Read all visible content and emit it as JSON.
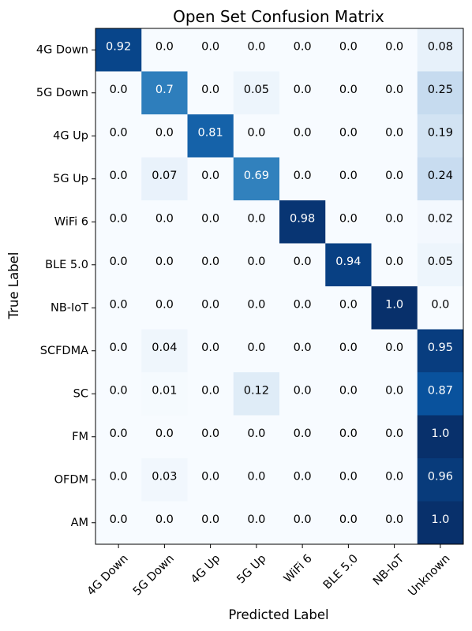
{
  "chart_data": {
    "type": "heatmap",
    "title": "Open Set Confusion Matrix",
    "xlabel": "Predicted Label",
    "ylabel": "True Label",
    "x_categories": [
      "4G Down",
      "5G Down",
      "4G Up",
      "5G Up",
      "WiFi 6",
      "BLE 5.0",
      "NB-IoT",
      "Unknown"
    ],
    "y_categories": [
      "4G Down",
      "5G Down",
      "4G Up",
      "5G Up",
      "WiFi 6",
      "BLE 5.0",
      "NB-IoT",
      "SCFDMA",
      "SC",
      "FM",
      "OFDM",
      "AM"
    ],
    "values": [
      [
        "0.92",
        "0.0",
        "0.0",
        "0.0",
        "0.0",
        "0.0",
        "0.0",
        "0.08"
      ],
      [
        "0.0",
        "0.7",
        "0.0",
        "0.05",
        "0.0",
        "0.0",
        "0.0",
        "0.25"
      ],
      [
        "0.0",
        "0.0",
        "0.81",
        "0.0",
        "0.0",
        "0.0",
        "0.0",
        "0.19"
      ],
      [
        "0.0",
        "0.07",
        "0.0",
        "0.69",
        "0.0",
        "0.0",
        "0.0",
        "0.24"
      ],
      [
        "0.0",
        "0.0",
        "0.0",
        "0.0",
        "0.98",
        "0.0",
        "0.0",
        "0.02"
      ],
      [
        "0.0",
        "0.0",
        "0.0",
        "0.0",
        "0.0",
        "0.94",
        "0.0",
        "0.05"
      ],
      [
        "0.0",
        "0.0",
        "0.0",
        "0.0",
        "0.0",
        "0.0",
        "1.0",
        "0.0"
      ],
      [
        "0.0",
        "0.04",
        "0.0",
        "0.0",
        "0.0",
        "0.0",
        "0.0",
        "0.95"
      ],
      [
        "0.0",
        "0.01",
        "0.0",
        "0.12",
        "0.0",
        "0.0",
        "0.0",
        "0.87"
      ],
      [
        "0.0",
        "0.0",
        "0.0",
        "0.0",
        "0.0",
        "0.0",
        "0.0",
        "1.0"
      ],
      [
        "0.0",
        "0.03",
        "0.0",
        "0.0",
        "0.0",
        "0.0",
        "0.0",
        "0.96"
      ],
      [
        "0.0",
        "0.0",
        "0.0",
        "0.0",
        "0.0",
        "0.0",
        "0.0",
        "1.0"
      ]
    ],
    "value_range": [
      0,
      1
    ],
    "colormap": "Blues",
    "x_tick_rotation_deg": 45,
    "grid": false,
    "legend": "none"
  }
}
